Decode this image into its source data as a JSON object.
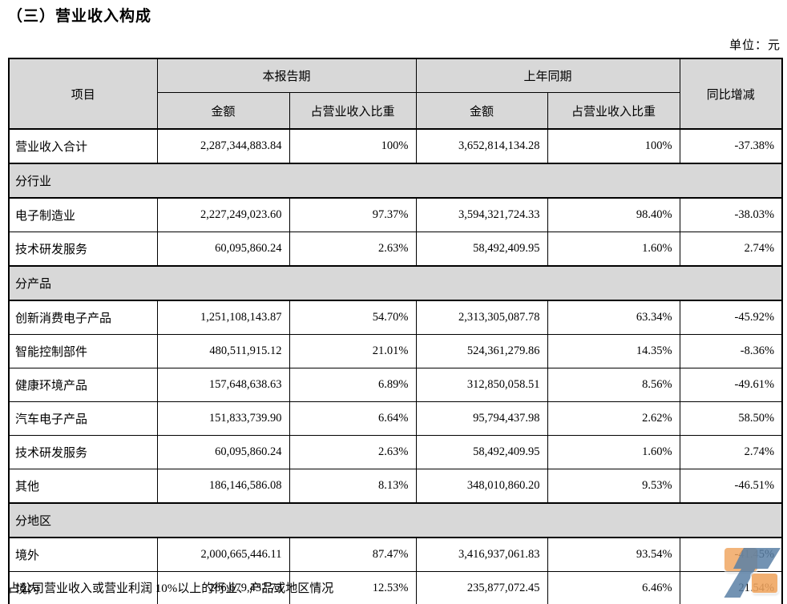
{
  "page": {
    "title": "（三）营业收入构成",
    "unit_label": "单位：元",
    "footer_note": "占公司营业收入或营业利润 10%以上的行业、产品或地区情况"
  },
  "table": {
    "header": {
      "item": "项目",
      "current_period": "本报告期",
      "prior_period": "上年同期",
      "yoy": "同比增减",
      "amount": "金额",
      "share": "占营业收入比重"
    },
    "body": [
      {
        "type": "row",
        "cells": [
          "营业收入合计",
          "2,287,344,883.84",
          "100%",
          "3,652,814,134.28",
          "100%",
          "-37.38%"
        ]
      },
      {
        "type": "section",
        "label": "分行业"
      },
      {
        "type": "row",
        "cells": [
          "电子制造业",
          "2,227,249,023.60",
          "97.37%",
          "3,594,321,724.33",
          "98.40%",
          "-38.03%"
        ]
      },
      {
        "type": "row",
        "cells": [
          "技术研发服务",
          "60,095,860.24",
          "2.63%",
          "58,492,409.95",
          "1.60%",
          "2.74%"
        ]
      },
      {
        "type": "section",
        "label": "分产品"
      },
      {
        "type": "row",
        "cells": [
          "创新消费电子产品",
          "1,251,108,143.87",
          "54.70%",
          "2,313,305,087.78",
          "63.34%",
          "-45.92%"
        ]
      },
      {
        "type": "row",
        "cells": [
          "智能控制部件",
          "480,511,915.12",
          "21.01%",
          "524,361,279.86",
          "14.35%",
          "-8.36%"
        ]
      },
      {
        "type": "row",
        "cells": [
          "健康环境产品",
          "157,648,638.63",
          "6.89%",
          "312,850,058.51",
          "8.56%",
          "-49.61%"
        ]
      },
      {
        "type": "row",
        "cells": [
          "汽车电子产品",
          "151,833,739.90",
          "6.64%",
          "95,794,437.98",
          "2.62%",
          "58.50%"
        ]
      },
      {
        "type": "row",
        "cells": [
          "技术研发服务",
          "60,095,860.24",
          "2.63%",
          "58,492,409.95",
          "1.60%",
          "2.74%"
        ]
      },
      {
        "type": "row",
        "cells": [
          "其他",
          "186,146,586.08",
          "8.13%",
          "348,010,860.20",
          "9.53%",
          "-46.51%"
        ]
      },
      {
        "type": "section",
        "label": "分地区"
      },
      {
        "type": "row",
        "cells": [
          "境外",
          "2,000,665,446.11",
          "87.47%",
          "3,416,937,061.83",
          "93.54%",
          "-41.45%"
        ]
      },
      {
        "type": "row",
        "cells": [
          "境内",
          "286,679,437.73",
          "12.53%",
          "235,877,072.45",
          "6.46%",
          "21.54%"
        ]
      }
    ]
  },
  "colors": {
    "header_bg": "#d8d8d8",
    "border": "#000000",
    "text": "#000000",
    "watermark_orange": "#f0a45e",
    "watermark_blue": "#5b80a6"
  }
}
